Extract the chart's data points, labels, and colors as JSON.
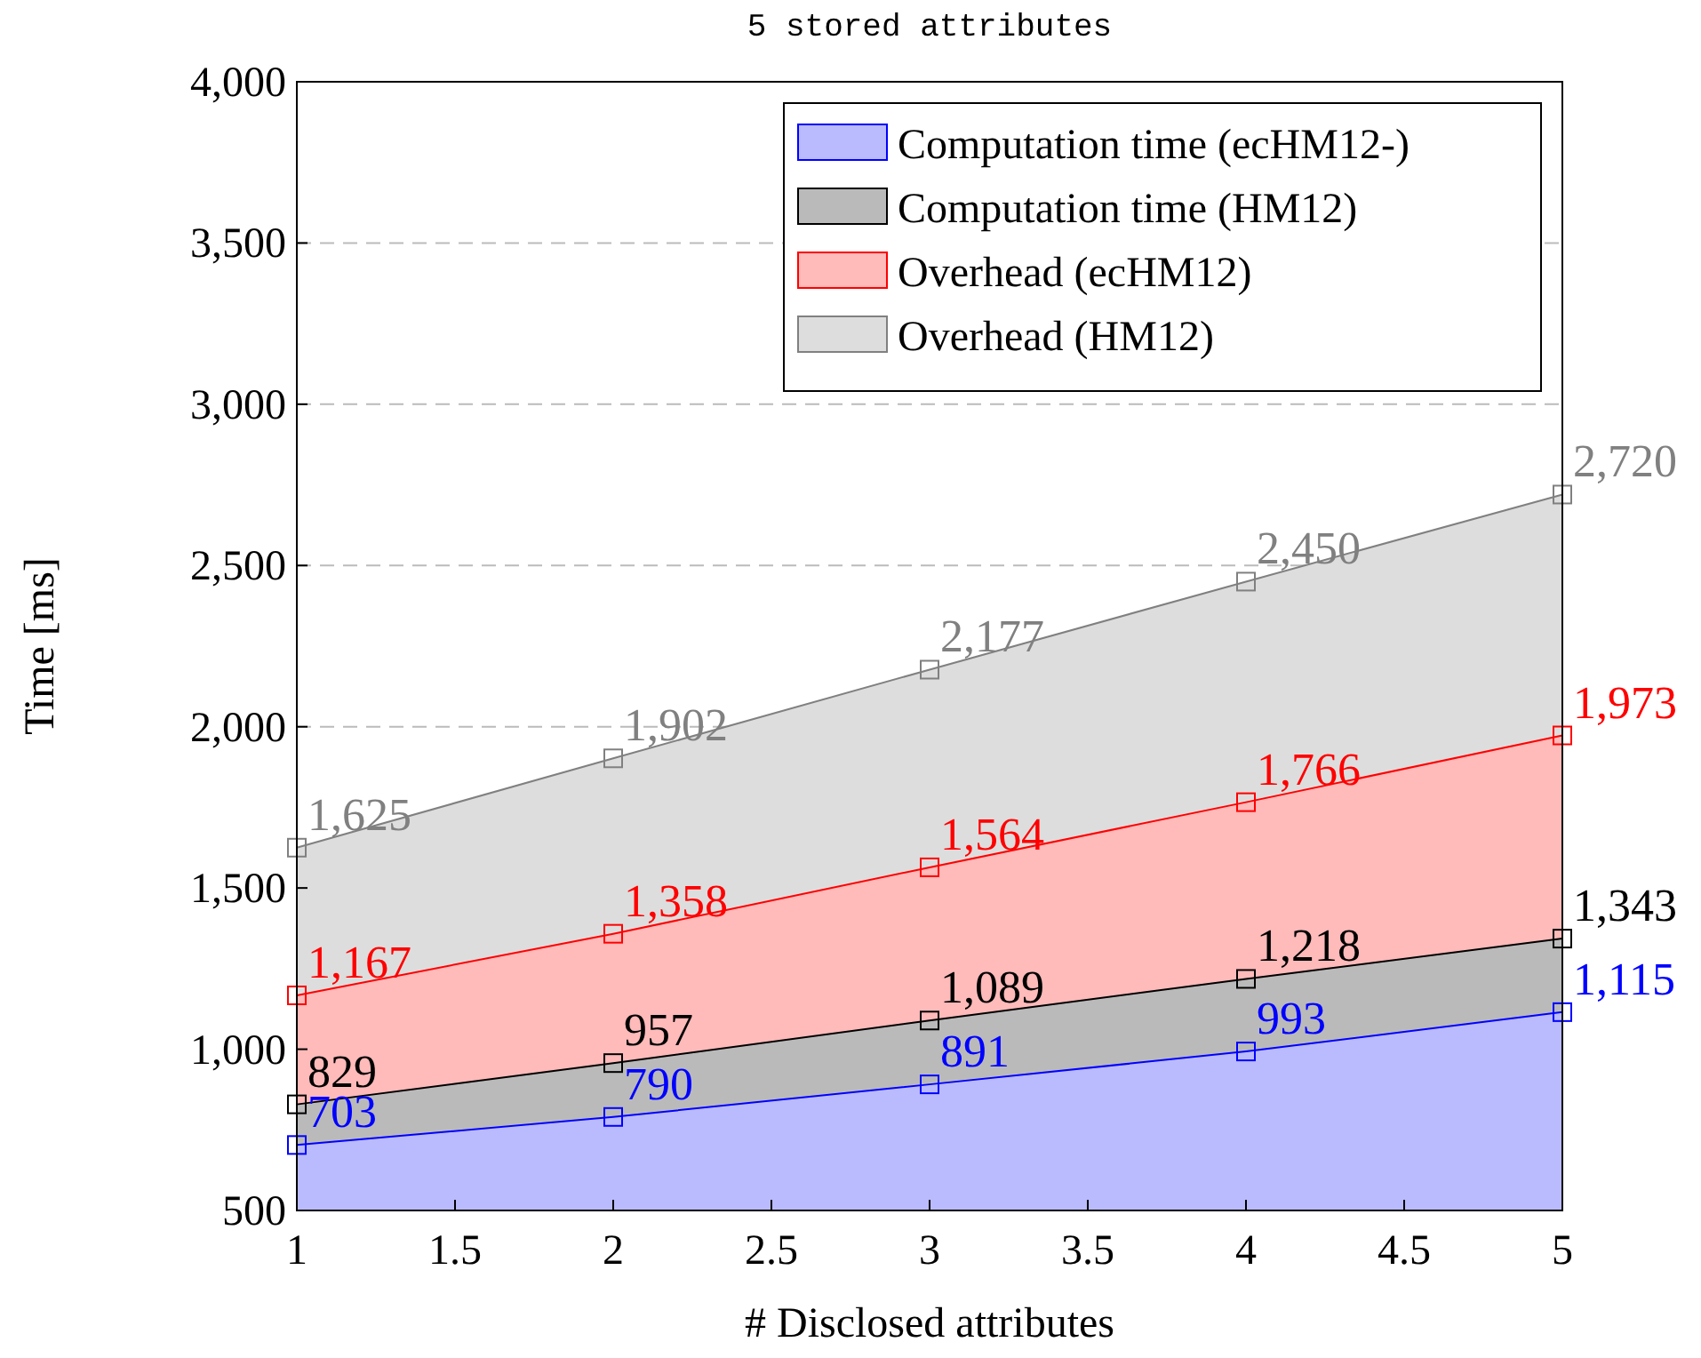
{
  "chart_data": {
    "type": "area",
    "title": "5 stored attributes",
    "xlabel": "# Disclosed attributes",
    "ylabel": "Time [ms]",
    "x": [
      1,
      2,
      3,
      4,
      5
    ],
    "series": [
      {
        "name": "Computation time (ecHM12-)",
        "color": "#0000ff",
        "values": [
          703,
          790,
          891,
          993,
          1115
        ],
        "value_labels": [
          "703",
          "790",
          "891",
          "993",
          "1,115"
        ]
      },
      {
        "name": "Computation time (HM12)",
        "color": "#000000",
        "values": [
          829,
          957,
          1089,
          1218,
          1343
        ],
        "value_labels": [
          "829",
          "957",
          "1,089",
          "1,218",
          "1,343"
        ]
      },
      {
        "name": "Overhead (ecHM12)",
        "color": "#ff0000",
        "values": [
          1167,
          1358,
          1564,
          1766,
          1973
        ],
        "value_labels": [
          "1,167",
          "1,358",
          "1,564",
          "1,766",
          "1,973"
        ]
      },
      {
        "name": "Overhead (HM12)",
        "color": "#808080",
        "values": [
          1625,
          1902,
          2177,
          2450,
          2720
        ],
        "value_labels": [
          "1,625",
          "1,902",
          "2,177",
          "2,450",
          "2,720"
        ]
      }
    ],
    "xlim": [
      1,
      5
    ],
    "xticks": [
      1,
      1.5,
      2,
      2.5,
      3,
      3.5,
      4,
      4.5,
      5
    ],
    "ylim": [
      500,
      4000
    ],
    "yticks": [
      500,
      {
        "value": 1000,
        "label": "1,000"
      },
      {
        "value": 1500,
        "label": "1,500"
      },
      {
        "value": 2000,
        "label": "2,000"
      },
      {
        "value": 2500,
        "label": "2,500"
      },
      {
        "value": 3000,
        "label": "3,000"
      },
      {
        "value": 3500,
        "label": "3,500"
      },
      {
        "value": 4000,
        "label": "4,000"
      }
    ],
    "grid": "y",
    "legend": "top right",
    "marker": "square"
  }
}
